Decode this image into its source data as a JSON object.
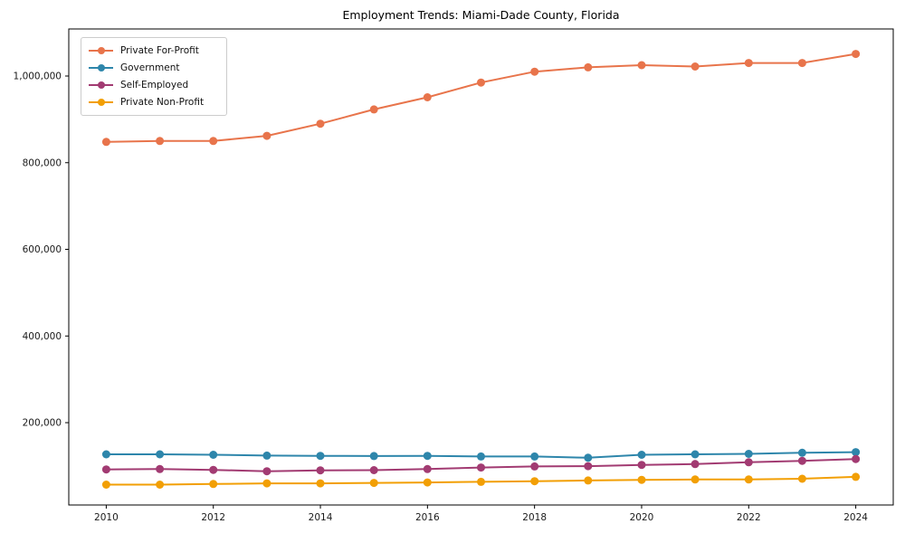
{
  "chart_data": {
    "type": "line",
    "title": "Employment Trends: Miami-Dade County, Florida",
    "xlabel": "",
    "ylabel": "",
    "x": [
      2010,
      2011,
      2012,
      2013,
      2014,
      2015,
      2016,
      2017,
      2018,
      2019,
      2020,
      2021,
      2022,
      2023,
      2024
    ],
    "series": [
      {
        "name": "Private For-Profit",
        "color": "#E8744B",
        "values": [
          848000,
          850000,
          850000,
          862000,
          890000,
          923000,
          951000,
          985000,
          1010000,
          1020000,
          1025000,
          1022000,
          1030000,
          1030000,
          1051000
        ]
      },
      {
        "name": "Government",
        "color": "#2E86AB",
        "values": [
          127000,
          127000,
          126000,
          124000,
          123500,
          123000,
          123500,
          122000,
          122000,
          119000,
          126000,
          127000,
          128000,
          130500,
          132000
        ]
      },
      {
        "name": "Self-Employed",
        "color": "#A23B72",
        "values": [
          92000,
          93000,
          91000,
          88000,
          90000,
          90500,
          93000,
          96500,
          99000,
          99500,
          102500,
          104500,
          108500,
          112000,
          116000
        ]
      },
      {
        "name": "Private Non-Profit",
        "color": "#F29F05",
        "values": [
          57000,
          57000,
          58500,
          60000,
          60000,
          61000,
          62000,
          63500,
          65000,
          66500,
          68000,
          69000,
          69000,
          70500,
          75000
        ]
      }
    ],
    "xticks": [
      2010,
      2012,
      2014,
      2016,
      2018,
      2020,
      2022,
      2024
    ],
    "xtick_labels": [
      "2010",
      "2012",
      "2014",
      "2016",
      "2018",
      "2020",
      "2022",
      "2024"
    ],
    "yticks": [
      200000,
      400000,
      600000,
      800000,
      1000000
    ],
    "ytick_labels": [
      "200,000",
      "400,000",
      "600,000",
      "800,000",
      "1,000,000"
    ],
    "xlim": [
      2009.3,
      2024.7
    ],
    "ylim": [
      10000,
      1108600
    ],
    "grid": false,
    "legend_position": "upper-left",
    "marker": "circle",
    "line_width": 2,
    "marker_radius": 4.5,
    "spine_color": "#000000",
    "tick_label_color": "#1a1a1a"
  }
}
